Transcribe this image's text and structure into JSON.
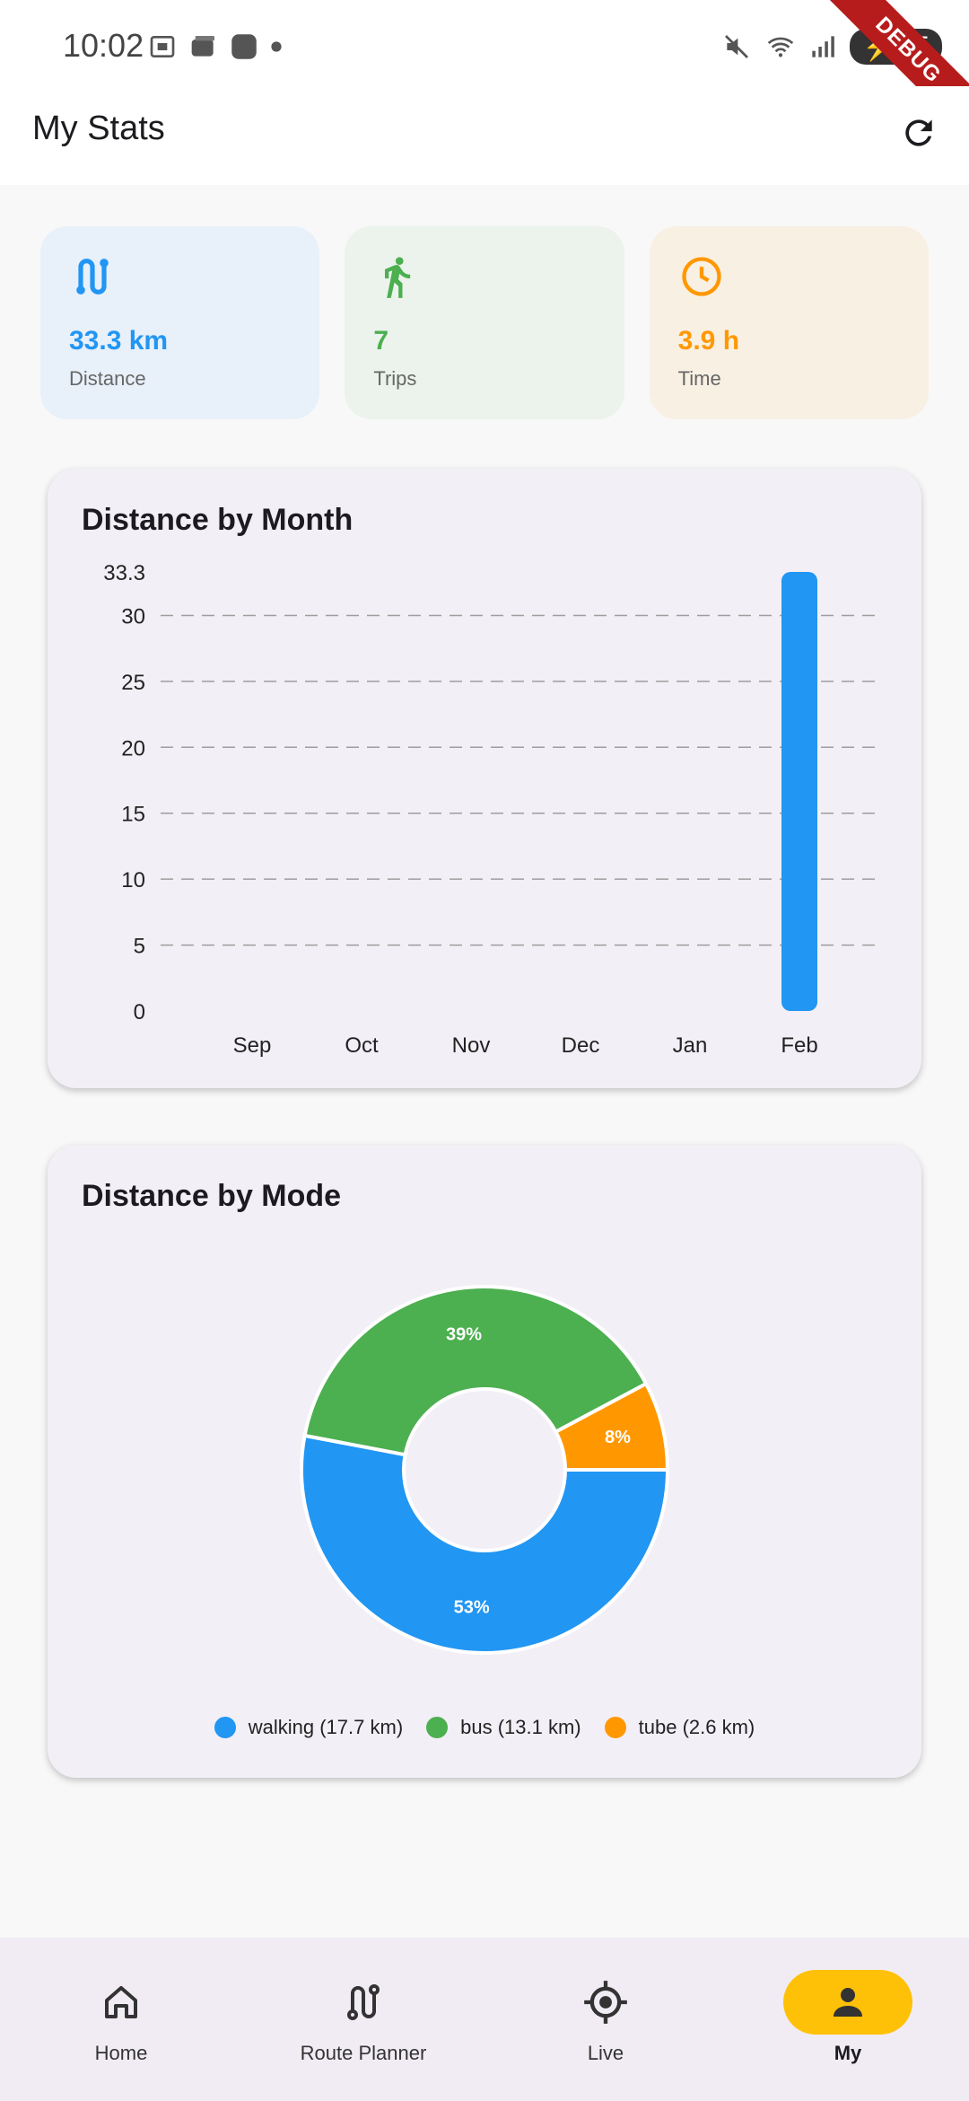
{
  "status_bar": {
    "time": "10:02",
    "battery": "85",
    "debug_label": "DEBUG"
  },
  "app_bar": {
    "title": "My Stats",
    "refresh_icon": "refresh-icon"
  },
  "summary": [
    {
      "value": "33.3 km",
      "label": "Distance",
      "icon": "route-icon",
      "color": "#2196f3",
      "bg": "#e8f0fa"
    },
    {
      "value": "7",
      "label": "Trips",
      "icon": "walking-icon",
      "color": "#4caf50",
      "bg": "#ebf3ec"
    },
    {
      "value": "3.9 h",
      "label": "Time",
      "icon": "clock-icon",
      "color": "#ff9800",
      "bg": "#f9f0e4"
    }
  ],
  "distance_by_month": {
    "title": "Distance by Month"
  },
  "distance_by_mode": {
    "title": "Distance by Mode",
    "legend": [
      {
        "label": "walking (17.7 km)",
        "color": "#2196f3"
      },
      {
        "label": "bus (13.1 km)",
        "color": "#4caf50"
      },
      {
        "label": "tube (2.6 km)",
        "color": "#ff9800"
      }
    ]
  },
  "chart_data": [
    {
      "type": "bar",
      "title": "Distance by Month",
      "categories": [
        "Sep",
        "Oct",
        "Nov",
        "Dec",
        "Jan",
        "Feb"
      ],
      "values": [
        0,
        0,
        0,
        0,
        0,
        33.3
      ],
      "ylim": [
        0,
        33.3
      ],
      "yticks": [
        0,
        5,
        10,
        15,
        20,
        25,
        30,
        33.3
      ],
      "ytick_labels": [
        "0",
        "5",
        "10",
        "15",
        "20",
        "25",
        "30",
        "33.3"
      ],
      "grid": true,
      "bar_color": "#2196f3"
    },
    {
      "type": "pie",
      "title": "Distance by Mode",
      "labels": [
        "walking (17.7 km)",
        "bus (13.1 km)",
        "tube (2.6 km)"
      ],
      "values": [
        17.7,
        13.1,
        2.6
      ],
      "percent_labels": [
        "53%",
        "39%",
        "8%"
      ],
      "colors": [
        "#2196f3",
        "#4caf50",
        "#ff9800"
      ],
      "donut": true,
      "legend": "bottom"
    }
  ],
  "bottom_nav": [
    {
      "label": "Home",
      "icon": "home-icon",
      "active": false
    },
    {
      "label": "Route Planner",
      "icon": "route-icon",
      "active": false
    },
    {
      "label": "Live",
      "icon": "location-target-icon",
      "active": false
    },
    {
      "label": "My",
      "icon": "person-icon",
      "active": true
    }
  ]
}
